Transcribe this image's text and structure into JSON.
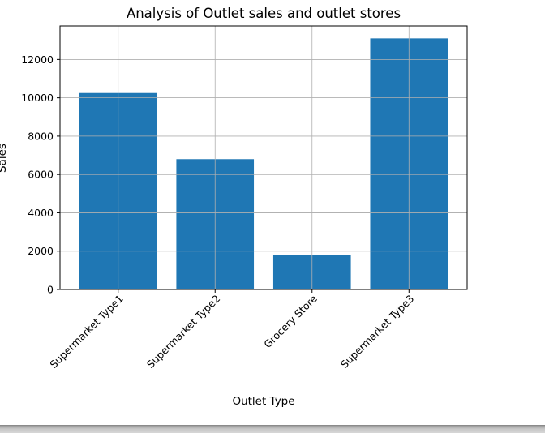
{
  "chart_data": {
    "type": "bar",
    "title": "Analysis of Outlet sales and outlet stores",
    "xlabel": "Outlet Type",
    "ylabel": "Sales",
    "categories": [
      "Supermarket Type1",
      "Supermarket Type2",
      "Grocery Store",
      "Supermarket Type3"
    ],
    "values": [
      10250,
      6800,
      1800,
      13100
    ],
    "ylim": [
      0,
      13750
    ],
    "yticks": [
      0,
      2000,
      4000,
      6000,
      8000,
      10000,
      12000
    ],
    "ytick_labels": [
      "0",
      "2000",
      "4000",
      "6000",
      "8000",
      "10000",
      "12000"
    ],
    "grid": true,
    "bar_color": "#1f77b4",
    "grid_color": "#b0b0b0",
    "xtick_rotation": 45
  }
}
